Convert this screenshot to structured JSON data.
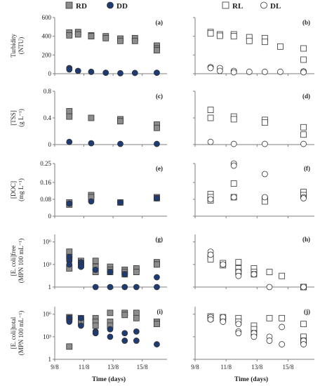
{
  "legend": {
    "left": [
      {
        "name": "RD",
        "marker": "square",
        "fill": "#8c8c8c"
      },
      {
        "name": "DD",
        "marker": "circle",
        "fill": "#1f3b73"
      }
    ],
    "right": [
      {
        "name": "RL",
        "marker": "square",
        "fill": "#ffffff"
      },
      {
        "name": "DL",
        "marker": "circle",
        "fill": "#ffffff"
      }
    ]
  },
  "colors": {
    "RD": "#8c8c8c",
    "DD": "#1f3b73",
    "open": "#ffffff",
    "edge": "#333333"
  },
  "xlabel": "Time (days)",
  "xticks": [
    "9/8",
    "11/8",
    "13/8",
    "15/8"
  ],
  "chart_data": [
    {
      "type": "scatter",
      "panel": "(a)",
      "column": "left",
      "ylabel": [
        "Turbidity",
        "(NTU)"
      ],
      "yscale": "linear",
      "ylim": [
        0,
        600
      ],
      "yticks": [
        "0",
        "200",
        "400",
        "600"
      ],
      "series": [
        {
          "name": "RD",
          "x": [
            10,
            10,
            10.6,
            10.6,
            11.5,
            11.5,
            12.5,
            12.5,
            13.5,
            13.5,
            14.5,
            14.5,
            16,
            16,
            16
          ],
          "y": [
            440,
            410,
            445,
            420,
            410,
            400,
            400,
            380,
            375,
            350,
            380,
            350,
            300,
            270,
            250
          ]
        },
        {
          "name": "DD",
          "x": [
            10,
            10,
            10.6,
            11.5,
            12.5,
            13.5,
            14.5,
            16
          ],
          "y": [
            60,
            45,
            30,
            20,
            10,
            5,
            8,
            10
          ]
        }
      ]
    },
    {
      "type": "scatter",
      "panel": "(b)",
      "column": "right",
      "ylabel": [],
      "yscale": "linear",
      "ylim": [
        0,
        600
      ],
      "yticks": [],
      "series": [
        {
          "name": "RL",
          "x": [
            10,
            10,
            10.6,
            10.6,
            11.5,
            11.5,
            12.5,
            12.5,
            13.5,
            13.5,
            14.5,
            16,
            16
          ],
          "y": [
            445,
            430,
            420,
            405,
            420,
            400,
            390,
            350,
            380,
            340,
            290,
            270,
            150
          ]
        },
        {
          "name": "DL",
          "x": [
            10,
            10,
            10.6,
            10.6,
            11.5,
            11.5,
            12.5,
            13.5,
            14.5,
            16,
            16
          ],
          "y": [
            70,
            60,
            60,
            30,
            30,
            15,
            20,
            20,
            20,
            25,
            15
          ]
        }
      ]
    },
    {
      "type": "scatter",
      "panel": "(c)",
      "column": "left",
      "ylabel": [
        "[TSS]",
        "(g L⁻¹)"
      ],
      "yscale": "linear",
      "ylim": [
        0,
        0.8
      ],
      "yticks": [
        "0",
        "0.4",
        "0.8"
      ],
      "series": [
        {
          "name": "RD",
          "x": [
            10,
            10,
            11.5,
            13.5,
            13.5,
            16,
            16
          ],
          "y": [
            0.5,
            0.42,
            0.4,
            0.38,
            0.35,
            0.3,
            0.25
          ]
        },
        {
          "name": "DD",
          "x": [
            10,
            11.5,
            13.5,
            16
          ],
          "y": [
            0.04,
            0.02,
            0.01,
            0.01
          ]
        }
      ]
    },
    {
      "type": "scatter",
      "panel": "(d)",
      "column": "right",
      "ylabel": [],
      "yscale": "linear",
      "ylim": [
        0,
        0.8
      ],
      "yticks": [],
      "series": [
        {
          "name": "RL",
          "x": [
            10,
            10,
            11.5,
            11.5,
            13.5,
            13.5,
            16,
            16
          ],
          "y": [
            0.52,
            0.4,
            0.42,
            0.38,
            0.37,
            0.33,
            0.26,
            0.15
          ]
        },
        {
          "name": "DL",
          "x": [
            10,
            11.5,
            13.5,
            16
          ],
          "y": [
            0.04,
            0.01,
            0.01,
            0.01
          ]
        }
      ]
    },
    {
      "type": "scatter",
      "panel": "(e)",
      "column": "left",
      "ylabel": [
        "[DOC]",
        "(mg L⁻¹)"
      ],
      "yscale": "linear",
      "ylim": [
        0,
        0.25
      ],
      "yticks": [
        "0",
        "0.08",
        "0.16",
        "0.25"
      ],
      "series": [
        {
          "name": "RD",
          "x": [
            10,
            10,
            11.5,
            11.5,
            13.5,
            16,
            16
          ],
          "y": [
            0.065,
            0.055,
            0.1,
            0.09,
            0.065,
            0.09,
            0.085
          ]
        },
        {
          "name": "DD",
          "x": [
            10,
            11.5,
            13.5,
            16
          ],
          "y": [
            0.06,
            0.07,
            0.065,
            0.085
          ]
        }
      ]
    },
    {
      "type": "scatter",
      "panel": "(f)",
      "column": "right",
      "ylabel": [],
      "yscale": "linear",
      "ylim": [
        0,
        0.25
      ],
      "yticks": [],
      "series": [
        {
          "name": "RL",
          "x": [
            10,
            10,
            10,
            11.5,
            11.5,
            13.5,
            13.5,
            16,
            16
          ],
          "y": [
            0.105,
            0.09,
            0.075,
            0.155,
            0.09,
            0.08,
            0.07,
            0.115,
            0.1
          ]
        },
        {
          "name": "DL",
          "x": [
            10,
            11.5,
            11.5,
            11.5,
            13.5,
            13.5,
            16,
            16
          ],
          "y": [
            0.08,
            0.25,
            0.24,
            0.09,
            0.2,
            0.09,
            0.09,
            0.085
          ]
        }
      ]
    },
    {
      "type": "scatter",
      "panel": "(g)",
      "column": "left",
      "ylabel": [
        "[E. coli]free",
        "(MPN 100 mL⁻¹)"
      ],
      "yscale": "log",
      "ylim": [
        1,
        10000000
      ],
      "yticks": [
        "1",
        "10³",
        "10⁶"
      ],
      "series": [
        {
          "name": "RD",
          "x": [
            10,
            10,
            10,
            10.8,
            10.8,
            10.8,
            11.8,
            11.8,
            11.8,
            12.8,
            12.8,
            12.8,
            13.8,
            13.8,
            13.8,
            14.6,
            14.6,
            16,
            16
          ],
          "y": [
            50000,
            10000,
            300,
            3000,
            1500,
            800,
            3000,
            500,
            100,
            500,
            200,
            100,
            200,
            100,
            50,
            300,
            100,
            2000,
            1000
          ]
        },
        {
          "name": "DD",
          "x": [
            10,
            10,
            10,
            10.8,
            10.8,
            10.8,
            11.8,
            11.8,
            12.8,
            12.8,
            13.8,
            13.8,
            14.6,
            16,
            16
          ],
          "y": [
            10000,
            3000,
            1000,
            2000,
            1000,
            500,
            200,
            1,
            100,
            1,
            50,
            1,
            1,
            20,
            1
          ]
        }
      ]
    },
    {
      "type": "scatter",
      "panel": "(h)",
      "column": "right",
      "ylabel": [],
      "yscale": "log",
      "ylim": [
        1,
        10000000
      ],
      "yticks": [],
      "series": [
        {
          "name": "RL",
          "x": [
            10,
            10,
            10.8,
            10.8,
            11.8,
            11.8,
            11.8,
            12.8,
            12.8,
            12.8,
            13.8,
            14.6,
            16,
            16
          ],
          "y": [
            10000,
            5000,
            1500,
            800,
            2000,
            300,
            100,
            300,
            100,
            50,
            100,
            30,
            1,
            1
          ]
        },
        {
          "name": "DL",
          "x": [
            10,
            10,
            10.8,
            11.8,
            11.8,
            12.8,
            13.8,
            16
          ],
          "y": [
            50000,
            20000,
            1000,
            100,
            30,
            50,
            1,
            1
          ]
        }
      ]
    },
    {
      "type": "scatter",
      "panel": "(i)",
      "column": "left",
      "ylabel": [
        "[E. coli]total",
        "(MPN 100 mL⁻¹)"
      ],
      "yscale": "log",
      "ylim": [
        1,
        10000000
      ],
      "yticks": [
        "1",
        "10³",
        "10⁶"
      ],
      "series": [
        {
          "name": "RD",
          "x": [
            10,
            10,
            10,
            10.8,
            10.8,
            11.8,
            11.8,
            11.8,
            12.8,
            12.8,
            12.8,
            13.8,
            13.8,
            14.6,
            14.6,
            16,
            16
          ],
          "y": [
            400000,
            300000,
            50,
            300000,
            100000,
            300000,
            100000,
            30000,
            1500000,
            100000,
            30000,
            1500000,
            800000,
            1500000,
            300000,
            100000,
            50000
          ]
        },
        {
          "name": "DD",
          "x": [
            10,
            10,
            10.8,
            10.8,
            11.8,
            11.8,
            12.8,
            12.8,
            13.8,
            13.8,
            14.6,
            14.6,
            16
          ],
          "y": [
            300000,
            100000,
            300000,
            30000,
            5000,
            3000,
            10000,
            1000,
            3000,
            300,
            5000,
            300,
            100
          ]
        }
      ]
    },
    {
      "type": "scatter",
      "panel": "(j)",
      "column": "right",
      "ylabel": [],
      "yscale": "log",
      "ylim": [
        1,
        10000000
      ],
      "yticks": [],
      "series": [
        {
          "name": "RL",
          "x": [
            10,
            10,
            10.8,
            10.8,
            11.8,
            11.8,
            12.8,
            12.8,
            12.8,
            13.8,
            14.6,
            16,
            16,
            16
          ],
          "y": [
            500000,
            300000,
            400000,
            200000,
            300000,
            100000,
            30000,
            10000,
            3000,
            300000,
            300000,
            50000,
            1000,
            300
          ]
        },
        {
          "name": "DL",
          "x": [
            10,
            10,
            10.8,
            10.8,
            11.8,
            11.8,
            11.8,
            12.8,
            12.8,
            13.8,
            13.8,
            14.6,
            14.6,
            16,
            16
          ],
          "y": [
            400000,
            200000,
            400000,
            100000,
            50000,
            5000,
            3000,
            3000,
            1000,
            1000,
            300,
            20000,
            100,
            300,
            100
          ]
        }
      ]
    }
  ]
}
